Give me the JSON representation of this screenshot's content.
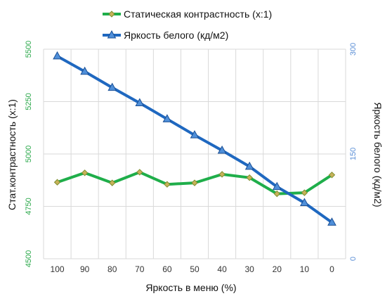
{
  "colors": {
    "contrast_line": "#1fae4a",
    "contrast_marker_fill": "#c7b25a",
    "contrast_marker_stroke": "#7e8f2e",
    "brightness_line": "#1f68c0",
    "brightness_marker_fill": "#4f8fd9",
    "brightness_marker_stroke": "#1a4f95",
    "grid": "#d9d9d9",
    "left_ticks": "#2aa84a",
    "right_ticks": "#5b8fd6"
  },
  "chart_data": {
    "type": "line",
    "grid": true,
    "legend_position": "top",
    "xlabel": "Яркость в меню (%)",
    "ylabel_left": "Стат.контрастность  (х:1)",
    "ylabel_right": "Яркость белого (кд/м2)",
    "categories": [
      "100",
      "90",
      "80",
      "70",
      "60",
      "50",
      "40",
      "30",
      "20",
      "10",
      "0"
    ],
    "y_left": {
      "min": 4500,
      "max": 5500,
      "ticks": [
        "4500",
        "4750",
        "5000",
        "5250",
        "5500"
      ]
    },
    "y_right": {
      "min": 0,
      "max": 300,
      "ticks": [
        "0",
        "150",
        "300"
      ]
    },
    "series": [
      {
        "name": "Статическая контрастность  (х:1)",
        "axis": "left",
        "marker": "diamond",
        "values": [
          4865,
          4910,
          4862,
          4913,
          4855,
          4862,
          4903,
          4887,
          4810,
          4815,
          4900
        ]
      },
      {
        "name": "Яркость белого (кд/м2)",
        "axis": "right",
        "marker": "triangle",
        "values": [
          290,
          268,
          245,
          223,
          200,
          177,
          155,
          132,
          103,
          80,
          52
        ]
      }
    ]
  }
}
